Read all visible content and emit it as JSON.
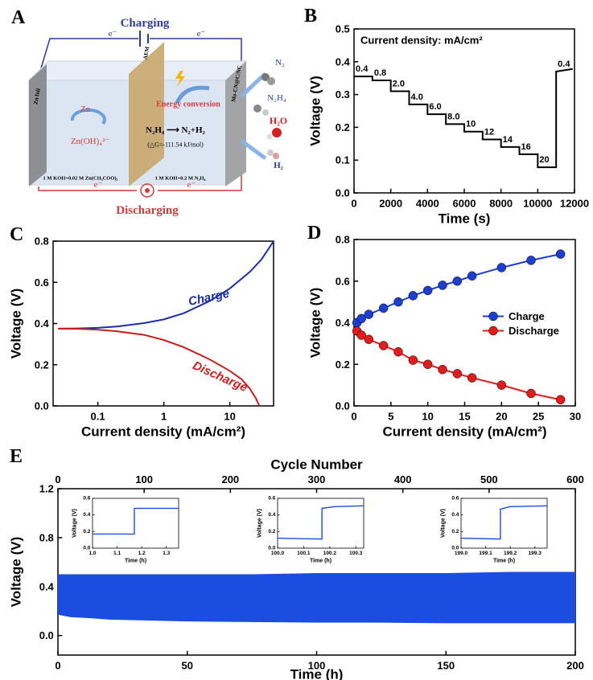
{
  "diagram": {
    "panel_label": "A",
    "charging": "Charging",
    "discharging": "Discharging",
    "electrons": [
      "e⁻",
      "e⁻",
      "e⁻",
      "e⁻"
    ],
    "anode": "Zn foil",
    "membrane": "AEM",
    "cathode": "Mo-CN@C/NC",
    "zn": "Zn",
    "zincate": "Zn(OH)₄²⁻",
    "energy": "Energy conversion",
    "reaction": "N₂H₄ ⟶ N₂+H₂",
    "delta_g": "(△G=-111.54 kJ/mol)",
    "anolyte": "1 M KOH+0.02 M Zn(CH₃COO)₂",
    "catholyte": "1 M KOH+0.2 M N₂H₄",
    "products": [
      "N₂",
      "N₂H₄",
      "H₂O",
      "H₂"
    ]
  },
  "chart_data": [
    {
      "panel_label": "B",
      "type": "line",
      "annotation": "Current density: mA/cm²",
      "step_labels": [
        "0.4",
        "0.8",
        "2.0",
        "4.0",
        "6.0",
        "8.0",
        "10",
        "12",
        "14",
        "16",
        "20",
        "0.4"
      ],
      "xlabel": "Time (s)",
      "ylabel": "Voltage (V)",
      "xlim": [
        0,
        12000
      ],
      "xticks": [
        0,
        2000,
        4000,
        6000,
        8000,
        10000,
        12000
      ],
      "ylim": [
        0,
        0.5
      ],
      "yticks": [
        {
          "value": 0,
          "label": "0.0"
        },
        0.1,
        0.2,
        0.3,
        0.4,
        0.5
      ],
      "series": [
        {
          "color": "#000000",
          "x": [
            0,
            1000,
            1000,
            2000,
            2000,
            3000,
            3000,
            4000,
            4000,
            5000,
            5000,
            6000,
            6000,
            7000,
            7000,
            8000,
            8000,
            9000,
            9000,
            10000,
            10000,
            11000,
            11000,
            11900
          ],
          "values": [
            0.355,
            0.355,
            0.343,
            0.343,
            0.31,
            0.31,
            0.27,
            0.27,
            0.24,
            0.24,
            0.21,
            0.21,
            0.187,
            0.187,
            0.163,
            0.163,
            0.14,
            0.14,
            0.118,
            0.118,
            0.078,
            0.078,
            0.37,
            0.378
          ]
        }
      ]
    },
    {
      "panel_label": "C",
      "type": "line",
      "xscale": "log",
      "legend": "inline",
      "xlabel": "Current density (mA/cm²)",
      "ylabel": "Voltage (V)",
      "xlim": [
        0.021,
        46
      ],
      "xticks": [
        0.1,
        1,
        10
      ],
      "ylim": [
        0,
        0.8
      ],
      "yticks": [
        {
          "value": 0,
          "label": "0.0"
        },
        0.2,
        0.4,
        0.6,
        0.8
      ],
      "series": [
        {
          "name": "Charge",
          "color": "#1c2fa6",
          "x": [
            0.025,
            0.05,
            0.1,
            0.2,
            0.5,
            1,
            2,
            5,
            10,
            20,
            30,
            40,
            46
          ],
          "values": [
            0.375,
            0.376,
            0.379,
            0.386,
            0.402,
            0.42,
            0.45,
            0.51,
            0.57,
            0.65,
            0.71,
            0.77,
            0.8
          ]
        },
        {
          "name": "Discharge",
          "color": "#c81e1e",
          "x": [
            0.025,
            0.05,
            0.1,
            0.2,
            0.5,
            1,
            2,
            5,
            10,
            15,
            20,
            25,
            28
          ],
          "values": [
            0.375,
            0.374,
            0.37,
            0.362,
            0.345,
            0.32,
            0.285,
            0.225,
            0.17,
            0.13,
            0.085,
            0.035,
            0
          ]
        }
      ]
    },
    {
      "panel_label": "D",
      "type": "line",
      "markers": true,
      "legend": "right",
      "xlabel": "Current density (mA/cm²)",
      "ylabel": "Voltage (V)",
      "xlim": [
        0,
        30
      ],
      "xticks": [
        0,
        5,
        10,
        15,
        20,
        25,
        30
      ],
      "ylim": [
        0,
        0.8
      ],
      "yticks": [
        {
          "value": 0,
          "label": "0.0"
        },
        0.2,
        0.4,
        0.6,
        0.8
      ],
      "series": [
        {
          "name": "Charge",
          "color": "#1c3fd0",
          "x": [
            0.4,
            1,
            2,
            4,
            6,
            8,
            10,
            12,
            14,
            16,
            20,
            24,
            28
          ],
          "values": [
            0.4,
            0.42,
            0.44,
            0.47,
            0.5,
            0.53,
            0.555,
            0.58,
            0.6,
            0.625,
            0.665,
            0.7,
            0.73
          ]
        },
        {
          "name": "Discharge",
          "color": "#e01c1c",
          "x": [
            0.4,
            1,
            2,
            4,
            6,
            8,
            10,
            12,
            14,
            16,
            20,
            24,
            28
          ],
          "values": [
            0.36,
            0.34,
            0.32,
            0.29,
            0.26,
            0.22,
            0.2,
            0.175,
            0.155,
            0.135,
            0.1,
            0.06,
            0.03
          ]
        }
      ]
    },
    {
      "panel_label": "E",
      "type": "area",
      "color": "#1a4de0",
      "xlabel": "Time (h)",
      "ylabel": "Voltage (V)",
      "x2label": "Cycle Number",
      "xlim": [
        0,
        200
      ],
      "xticks": [
        0,
        50,
        100,
        150,
        200
      ],
      "x2lim": [
        0,
        600
      ],
      "x2ticks": [
        0,
        100,
        200,
        300,
        400,
        500,
        600
      ],
      "ylim": [
        -0.16,
        1.2
      ],
      "yticks": [
        {
          "value": 0,
          "label": "0.0"
        },
        0.4,
        0.8,
        1.2
      ],
      "x": [
        0,
        5,
        10,
        20,
        30,
        50,
        75,
        100,
        125,
        150,
        175,
        200
      ],
      "upper": [
        0.5,
        0.5,
        0.5,
        0.5,
        0.5,
        0.5,
        0.5,
        0.51,
        0.51,
        0.51,
        0.52,
        0.52
      ],
      "lower": [
        0.17,
        0.15,
        0.145,
        0.13,
        0.125,
        0.115,
        0.11,
        0.105,
        0.105,
        0.1,
        0.1,
        0.1
      ],
      "insets": [
        {
          "type": "line",
          "xlabel": "Time (h)",
          "ylabel": "Voltage (V)",
          "xlim": [
            1,
            1.35
          ],
          "xticks": [
            {
              "value": 1,
              "label": "1.0"
            },
            1.1,
            1.2,
            1.3
          ],
          "ylim": [
            0,
            0.6
          ],
          "yticks": [
            {
              "value": 0,
              "label": "0.0"
            },
            0.2,
            0.4,
            0.6
          ],
          "series": [
            {
              "color": "#1a4de0",
              "x": [
                1,
                1.17,
                1.17,
                1.35
              ],
              "values": [
                0.17,
                0.17,
                0.48,
                0.48
              ]
            }
          ]
        },
        {
          "type": "line",
          "xlabel": "Time (h)",
          "ylabel": "Voltage (V)",
          "xlim": [
            100,
            100.33
          ],
          "xticks": [
            {
              "value": 100,
              "label": "100.0"
            },
            100.1,
            100.2,
            100.3
          ],
          "ylim": [
            0,
            0.6
          ],
          "yticks": [
            {
              "value": 0,
              "label": "0.0"
            },
            0.2,
            0.4,
            0.6
          ],
          "series": [
            {
              "color": "#1a4de0",
              "x": [
                100,
                100.17,
                100.17,
                100.22,
                100.33
              ],
              "values": [
                0.12,
                0.11,
                0.48,
                0.5,
                0.51
              ]
            }
          ]
        },
        {
          "type": "line",
          "xlabel": "Time (h)",
          "ylabel": "Voltage (V)",
          "xlim": [
            199,
            199.35
          ],
          "xticks": [
            {
              "value": 199,
              "label": "199.0"
            },
            199.1,
            199.2,
            199.3
          ],
          "ylim": [
            0,
            0.6
          ],
          "yticks": [
            {
              "value": 0,
              "label": "0.0"
            },
            0.2,
            0.4,
            0.6
          ],
          "series": [
            {
              "color": "#1a4de0",
              "x": [
                199,
                199.16,
                199.16,
                199.2,
                199.35
              ],
              "values": [
                0.12,
                0.11,
                0.47,
                0.5,
                0.51
              ]
            }
          ]
        }
      ]
    }
  ]
}
